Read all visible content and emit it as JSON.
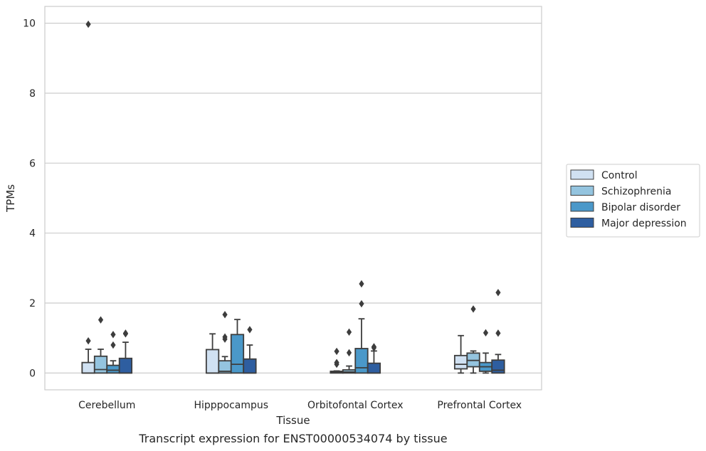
{
  "chart_data": {
    "type": "box",
    "title": "",
    "caption": "Transcript expression for ENST00000534074 by tissue",
    "xlabel": "Tissue",
    "ylabel": "TPMs",
    "ylim": [
      -0.48,
      10.48
    ],
    "yticks": [
      0,
      2,
      4,
      6,
      8,
      10
    ],
    "grid": "horizontal",
    "legend_position": "right",
    "categories": [
      "Cerebellum",
      "Hipppocampus",
      "Orbitofontal Cortex",
      "Prefrontal Cortex"
    ],
    "series": [
      {
        "name": "Control",
        "color": "#d0e1f2",
        "boxes": [
          {
            "q1": 0,
            "median": 0,
            "q3": 0.3,
            "wlow": 0,
            "whigh": 0.68,
            "outliers": [
              0.92
            ]
          },
          {
            "q1": 0,
            "median": 0,
            "q3": 0.67,
            "wlow": 0,
            "whigh": 1.12,
            "outliers": []
          },
          {
            "q1": 0,
            "median": 0.02,
            "q3": 0.05,
            "wlow": 0,
            "whigh": 0.06,
            "outliers": [
              0.25,
              0.3,
              0.62
            ]
          },
          {
            "q1": 0.12,
            "median": 0.25,
            "q3": 0.5,
            "wlow": 0,
            "whigh": 1.07,
            "outliers": []
          }
        ]
      },
      {
        "name": "Schizophrenia",
        "color": "#94c4df",
        "boxes": [
          {
            "q1": 0,
            "median": 0.1,
            "q3": 0.48,
            "wlow": 0,
            "whigh": 0.68,
            "outliers": [
              1.52
            ]
          },
          {
            "q1": 0,
            "median": 0.05,
            "q3": 0.35,
            "wlow": 0,
            "whigh": 0.47,
            "outliers": [
              0.97,
              1.03,
              1.67
            ]
          },
          {
            "q1": 0,
            "median": 0.03,
            "q3": 0.09,
            "wlow": 0,
            "whigh": 0.2,
            "outliers": [
              0.58,
              1.17
            ]
          },
          {
            "q1": 0.18,
            "median": 0.36,
            "q3": 0.57,
            "wlow": 0,
            "whigh": 0.63,
            "outliers": [
              1.83
            ]
          }
        ]
      },
      {
        "name": "Bipolar disorder",
        "color": "#4a98c9",
        "boxes": [
          {
            "q1": 0,
            "median": 0.08,
            "q3": 0.22,
            "wlow": 0,
            "whigh": 0.35,
            "outliers": [
              0.8,
              1.1
            ]
          },
          {
            "q1": 0,
            "median": 0.25,
            "q3": 1.1,
            "wlow": 0,
            "whigh": 1.53,
            "outliers": []
          },
          {
            "q1": 0,
            "median": 0.15,
            "q3": 0.7,
            "wlow": 0,
            "whigh": 1.55,
            "outliers": [
              1.98,
              2.55
            ]
          },
          {
            "q1": 0.05,
            "median": 0.18,
            "q3": 0.3,
            "wlow": 0,
            "whigh": 0.57,
            "outliers": [
              1.15
            ]
          }
        ]
      },
      {
        "name": "Major depression",
        "color": "#2e5ea0",
        "boxes": [
          {
            "q1": 0,
            "median": 0,
            "q3": 0.42,
            "wlow": 0,
            "whigh": 0.88,
            "outliers": [
              1.12,
              1.14
            ]
          },
          {
            "q1": 0,
            "median": 0,
            "q3": 0.4,
            "wlow": 0,
            "whigh": 0.8,
            "outliers": [
              1.24
            ]
          },
          {
            "q1": 0,
            "median": 0,
            "q3": 0.28,
            "wlow": 0,
            "whigh": 0.63,
            "outliers": [
              0.72,
              0.75
            ]
          },
          {
            "q1": 0,
            "median": 0.08,
            "q3": 0.37,
            "wlow": 0,
            "whigh": 0.53,
            "outliers": [
              1.14,
              2.3
            ]
          }
        ]
      }
    ],
    "outlier_extra": [
      {
        "category_index": 0,
        "series_index": 0,
        "value": 9.97
      }
    ]
  }
}
